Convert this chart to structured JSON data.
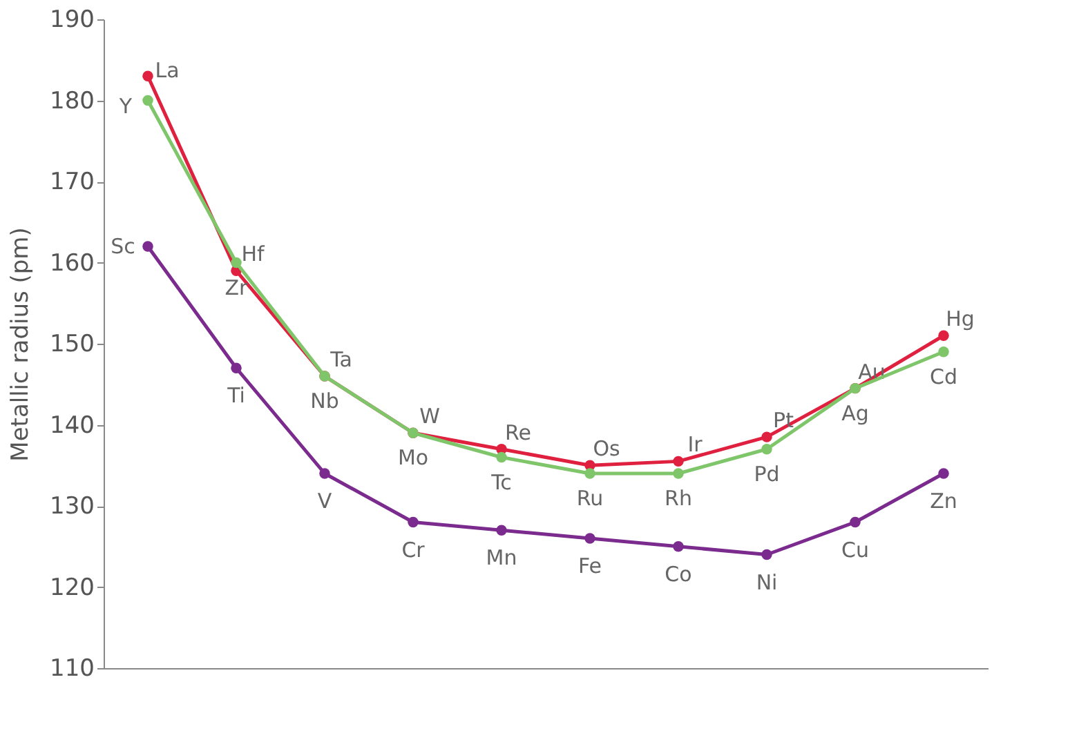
{
  "chart_data": {
    "type": "line",
    "ylabel": "Metallic radius (pm)",
    "categories": [
      null,
      null,
      null,
      null,
      null,
      null,
      null,
      null,
      null,
      null
    ],
    "ylim": [
      110,
      190
    ],
    "yticks": [
      110,
      120,
      130,
      140,
      150,
      160,
      170,
      180,
      190
    ],
    "grid": false,
    "marker": "circle",
    "series": [
      {
        "color": "#e0203f",
        "values": [
          183,
          159,
          146,
          139,
          137,
          135,
          135.5,
          138.5,
          144.5,
          151
        ],
        "value_labels": [
          "La",
          "Hf",
          "Ta",
          "W",
          "Re",
          "Os",
          "Ir",
          "Pt",
          "Au",
          "Hg"
        ]
      },
      {
        "color": "#7fc66a",
        "values": [
          180,
          160,
          146,
          139,
          136,
          134,
          134,
          137,
          144.5,
          149
        ],
        "value_labels": [
          "Y",
          "Zr",
          "Nb",
          "Mo",
          "Tc",
          "Ru",
          "Rh",
          "Pd",
          "Ag",
          "Cd"
        ]
      },
      {
        "color": "#7b2b8e",
        "values": [
          162,
          147,
          134,
          128,
          127,
          126,
          125,
          124,
          128,
          134
        ],
        "value_labels": [
          "Sc",
          "Ti",
          "V",
          "Cr",
          "Mn",
          "Fe",
          "Co",
          "Ni",
          "Cu",
          "Zn"
        ]
      }
    ]
  }
}
